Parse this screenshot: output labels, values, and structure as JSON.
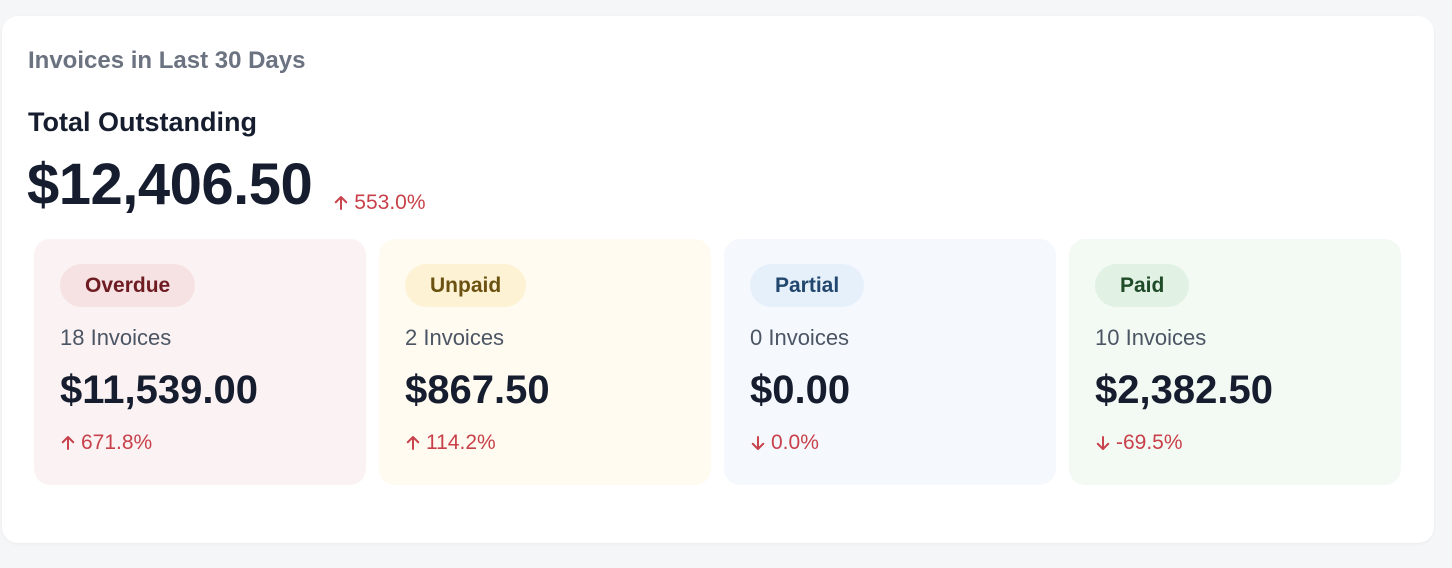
{
  "card": {
    "title": "Invoices in Last 30 Days"
  },
  "summary": {
    "label": "Total Outstanding",
    "amount": "$12,406.50",
    "change": "553.0%",
    "direction": "up"
  },
  "colors": {
    "trend": "#c8414a",
    "text_dark": "#161d2e",
    "text_muted": "#6b7280"
  },
  "tiles": [
    {
      "status": "Overdue",
      "count": "18 Invoices",
      "amount": "$11,539.00",
      "change": "671.8%",
      "direction": "up",
      "icon": "arrow-up-icon",
      "tile_bg": "#fbf2f3",
      "badge_bg": "#f6e1e3",
      "badge_fg": "#6e1c22"
    },
    {
      "status": "Unpaid",
      "count": "2 Invoices",
      "amount": "$867.50",
      "change": "114.2%",
      "direction": "up",
      "icon": "arrow-up-icon",
      "tile_bg": "#fffbf1",
      "badge_bg": "#fdf3d4",
      "badge_fg": "#6c5211"
    },
    {
      "status": "Partial",
      "count": "0 Invoices",
      "amount": "$0.00",
      "change": "0.0%",
      "direction": "down",
      "icon": "arrow-down-icon",
      "tile_bg": "#f5f9fe",
      "badge_bg": "#e6f0fb",
      "badge_fg": "#22476e"
    },
    {
      "status": "Paid",
      "count": "10 Invoices",
      "amount": "$2,382.50",
      "change": "-69.5%",
      "direction": "down",
      "icon": "arrow-down-icon",
      "tile_bg": "#f3faf4",
      "badge_bg": "#e1f1e4",
      "badge_fg": "#1f4b27"
    }
  ]
}
